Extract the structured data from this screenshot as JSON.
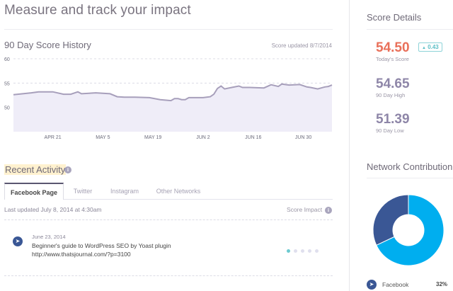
{
  "header": {
    "title": "Measure and track your impact"
  },
  "history": {
    "title": "90 Day Score History",
    "updated": "Score updated 8/7/2014"
  },
  "chart_data": {
    "type": "area",
    "title": "90 Day Score History",
    "ylim": [
      45,
      60
    ],
    "yticks": [
      "60",
      "55",
      "50"
    ],
    "xlim": [
      "2014-04-10",
      "2014-07-08"
    ],
    "xticks": [
      {
        "date": "2014-04-21",
        "label": "APR 21"
      },
      {
        "date": "2014-05-05",
        "label": "MAY 5"
      },
      {
        "date": "2014-05-19",
        "label": "MAY 19"
      },
      {
        "date": "2014-06-02",
        "label": "JUN 2"
      },
      {
        "date": "2014-06-16",
        "label": "JUN 16"
      },
      {
        "date": "2014-06-30",
        "label": "JUN 30"
      }
    ],
    "grid": true,
    "line_color": "#a79fbb",
    "fill_color": "#efedf8",
    "points": [
      [
        "2014-04-10",
        52.6
      ],
      [
        "2014-04-15",
        53.0
      ],
      [
        "2014-04-17",
        53.2
      ],
      [
        "2014-04-21",
        53.2
      ],
      [
        "2014-04-24",
        52.7
      ],
      [
        "2014-04-26",
        52.7
      ],
      [
        "2014-04-28",
        53.2
      ],
      [
        "2014-04-29",
        52.8
      ],
      [
        "2014-05-03",
        53.0
      ],
      [
        "2014-05-07",
        52.8
      ],
      [
        "2014-05-09",
        52.2
      ],
      [
        "2014-05-11",
        52.1
      ],
      [
        "2014-05-14",
        52.1
      ],
      [
        "2014-05-18",
        52.0
      ],
      [
        "2014-05-21",
        51.6
      ],
      [
        "2014-05-24",
        51.4
      ],
      [
        "2014-05-25",
        51.8
      ],
      [
        "2014-05-26",
        51.8
      ],
      [
        "2014-05-27",
        51.6
      ],
      [
        "2014-05-28",
        51.6
      ],
      [
        "2014-05-29",
        52.0
      ],
      [
        "2014-06-02",
        52.0
      ],
      [
        "2014-06-04",
        52.2
      ],
      [
        "2014-06-05",
        52.7
      ],
      [
        "2014-06-06",
        53.9
      ],
      [
        "2014-06-07",
        54.4
      ],
      [
        "2014-06-08",
        53.8
      ],
      [
        "2014-06-10",
        54.1
      ],
      [
        "2014-06-12",
        54.4
      ],
      [
        "2014-06-13",
        54.1
      ],
      [
        "2014-06-15",
        54.1
      ],
      [
        "2014-06-19",
        54.0
      ],
      [
        "2014-06-21",
        54.65
      ],
      [
        "2014-06-23",
        54.3
      ],
      [
        "2014-06-24",
        54.8
      ],
      [
        "2014-06-26",
        54.6
      ],
      [
        "2014-06-29",
        54.7
      ],
      [
        "2014-07-01",
        54.2
      ],
      [
        "2014-07-02",
        54.1
      ],
      [
        "2014-07-04",
        53.8
      ],
      [
        "2014-07-06",
        54.2
      ],
      [
        "2014-07-07",
        54.3
      ],
      [
        "2014-07-08",
        54.6
      ]
    ]
  },
  "activity": {
    "title": "Recent Activity",
    "tabs": [
      {
        "label": "Facebook Page",
        "active": true
      },
      {
        "label": "Twitter"
      },
      {
        "label": "Instagram"
      },
      {
        "label": "Other Networks"
      }
    ],
    "last_updated": "Last updated July 8, 2014 at 4:30am",
    "score_impact_label": "Score Impact",
    "items": [
      {
        "date": "June 23, 2014",
        "title": "Beginner's guide to WordPress SEO by Yoast plugin",
        "url": "http://www.thatsjournal.com/?p=3100",
        "impact_level": 1,
        "impact_max": 5,
        "icon": "facebook-megaphone-icon"
      }
    ]
  },
  "score": {
    "title": "Score Details",
    "today": "54.50",
    "today_label": "Today's Score",
    "change": "0.43",
    "change_icon": "triangle-up-icon",
    "high": "54.65",
    "high_label": "90 Day High",
    "low": "51.39",
    "low_label": "90 Day Low",
    "colors": {
      "today": "#e9705a",
      "stat": "#8e86a8",
      "change": "#5bbfc6"
    }
  },
  "network": {
    "title": "Network Contribution",
    "slices": [
      {
        "value": 68,
        "color": "#00aeef"
      },
      {
        "name": "Facebook",
        "value": 32,
        "color": "#3a5795"
      }
    ],
    "legend": [
      {
        "name": "Facebook",
        "percent": "32%",
        "icon": "facebook-megaphone-icon"
      }
    ]
  }
}
